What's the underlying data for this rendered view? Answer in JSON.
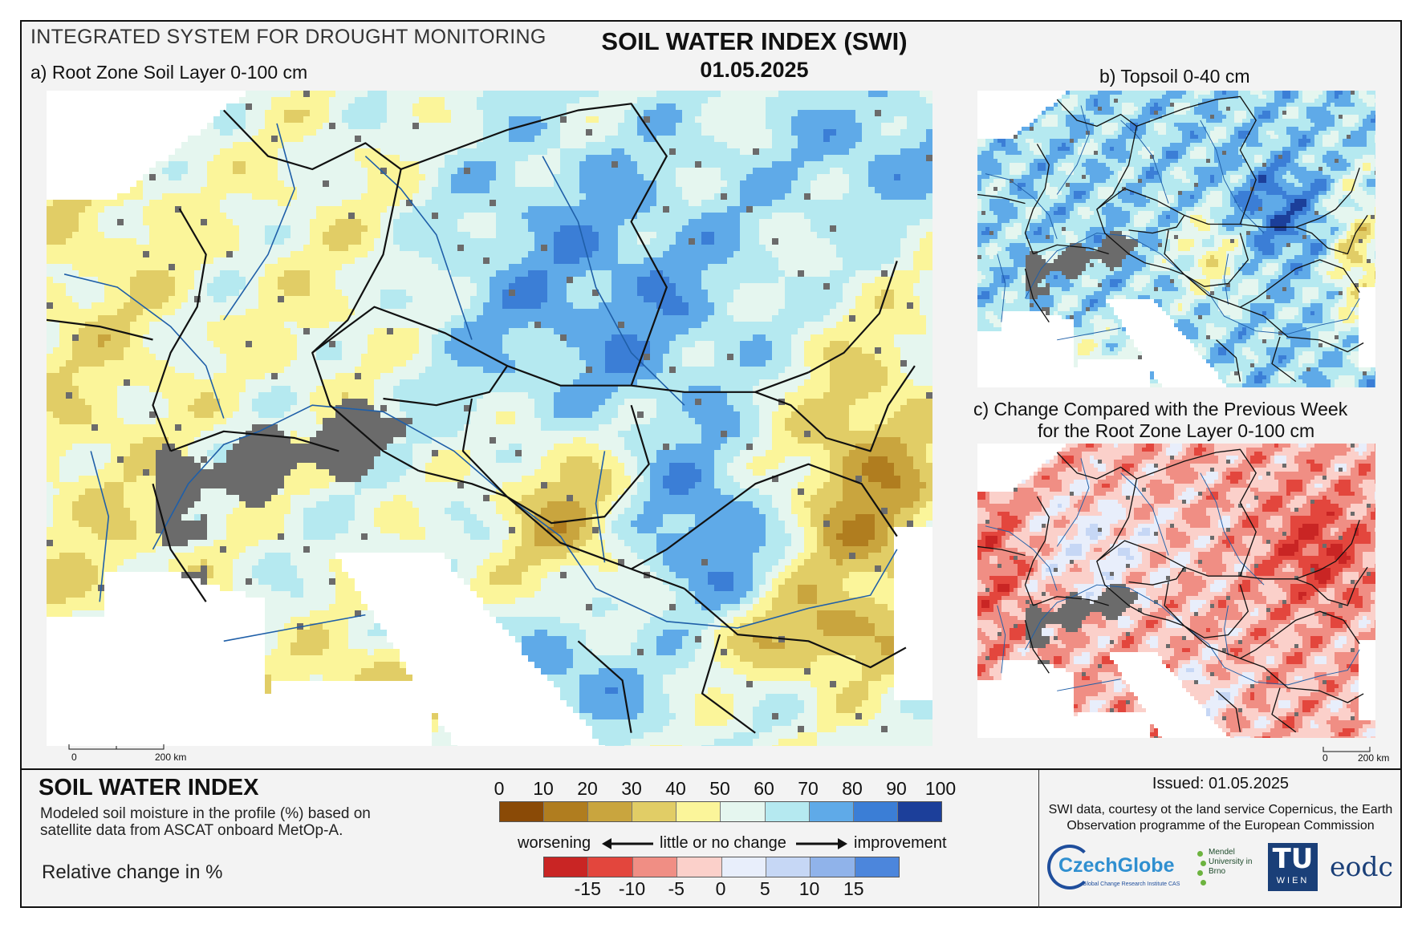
{
  "header": {
    "system_title": "INTEGRATED SYSTEM FOR DROUGHT MONITORING",
    "main_title": "SOIL WATER INDEX (SWI)",
    "date": "01.05.2025"
  },
  "panels": {
    "a_label": "a) Root Zone Soil Layer 0-100 cm",
    "b_label": "b) Topsoil 0-40 cm",
    "c_label_line1": "c) Change Compared with the Previous Week",
    "c_label_line2": "for the Root Zone Layer 0-100 cm"
  },
  "scalebar": {
    "zero": "0",
    "distance": "200 km"
  },
  "legend": {
    "title": "SOIL WATER INDEX",
    "description": "Modeled soil moisture in the profile (%) based on satellite data from ASCAT onboard MetOp-A.",
    "relative_change": "Relative change in %",
    "swi_ticks": [
      "0",
      "10",
      "20",
      "30",
      "40",
      "50",
      "60",
      "70",
      "80",
      "90",
      "100"
    ],
    "swi_colors": [
      "#8a4a06",
      "#b07d1f",
      "#c9a53e",
      "#e1cd66",
      "#fbf59a",
      "#e5f6ef",
      "#b5e9f0",
      "#5faae8",
      "#3b7ed6",
      "#1c3f9a"
    ],
    "change_left": "worsening",
    "change_mid": "little or no change",
    "change_right": "improvement",
    "change_ticks": [
      "-15",
      "-10",
      "-5",
      "0",
      "5",
      "10",
      "15"
    ],
    "change_colors": [
      "#c92524",
      "#e3463d",
      "#f08e84",
      "#fbd0ca",
      "#e8eefb",
      "#c6d7f5",
      "#90b3ea",
      "#4c86dc"
    ]
  },
  "footer": {
    "issued": "Issued: 01.05.2025",
    "credit": "SWI data, courtesy ot the land service Copernicus, the Earth Observation programme of the European Commission",
    "logos": {
      "czechglobe": "CzechGlobe",
      "czechglobe_sub": "Global Change Research Institute CAS",
      "mendel": "Mendel University in Brno",
      "tu_big": "TU",
      "tu_small": "WIEN",
      "eodc": "eodc"
    }
  },
  "colors": {
    "water_nodata": "#ffffff",
    "mountain_nodata": "#6b6b6b",
    "border": "#111111",
    "river": "#1f5fa8"
  }
}
